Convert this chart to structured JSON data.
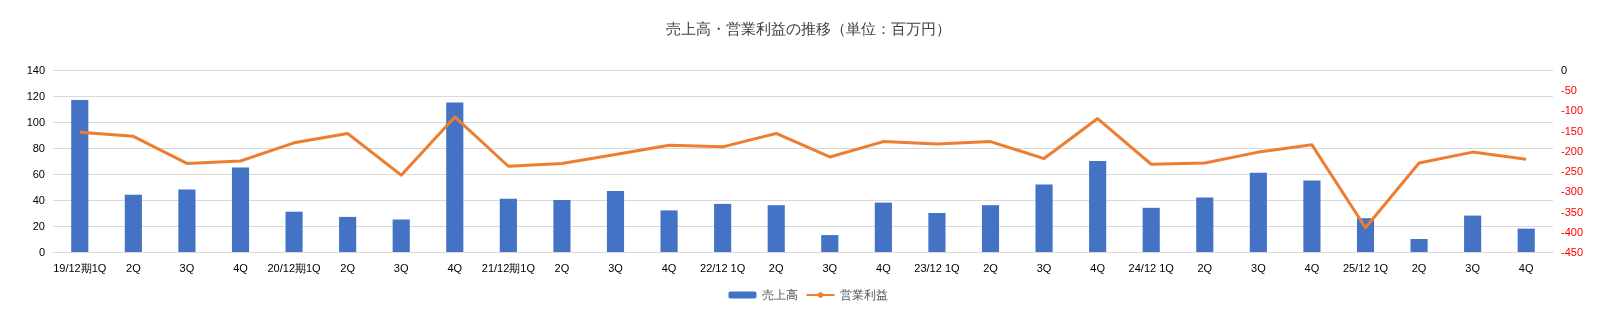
{
  "chart_data": {
    "type": "bar",
    "title": "売上高・営業利益の推移（単位：百万円）",
    "categories": [
      "19/12期1Q",
      "2Q",
      "3Q",
      "4Q",
      "20/12期1Q",
      "2Q",
      "3Q",
      "4Q",
      "21/12期1Q",
      "2Q",
      "3Q",
      "4Q",
      "22/12 1Q",
      "2Q",
      "3Q",
      "4Q",
      "23/12 1Q",
      "2Q",
      "3Q",
      "4Q",
      "24/12 1Q",
      "2Q",
      "3Q",
      "4Q",
      "25/12 1Q",
      "2Q",
      "3Q",
      "4Q"
    ],
    "series": [
      {
        "name": "売上高",
        "color": "#4472c4",
        "values": [
          117,
          44,
          48,
          65,
          31,
          27,
          25,
          115,
          41,
          40,
          47,
          32,
          37,
          36,
          13,
          38,
          30,
          36,
          52,
          70,
          34,
          42,
          61,
          55,
          26,
          10,
          28,
          18
        ]
      },
      {
        "name": "営業利益",
        "type": "line",
        "axis": "y2",
        "color": "#ed7d31",
        "values": [
          -154,
          -164,
          -231,
          -225,
          -180,
          -157,
          -260,
          -116,
          -238,
          -231,
          -209,
          -186,
          -190,
          -157,
          -215,
          -177,
          -183,
          -177,
          -219,
          -120,
          -233,
          -230,
          -203,
          -185,
          -390,
          -230,
          -203,
          -221
        ]
      }
    ],
    "ylim": [
      0,
      140
    ],
    "yticks": [
      0,
      20,
      40,
      60,
      80,
      100,
      120,
      140
    ],
    "y2lim": [
      -450,
      0
    ],
    "y2ticks": [
      -450,
      -400,
      -350,
      -300,
      -250,
      -200,
      -150,
      -100,
      -50,
      0
    ],
    "grid": "y",
    "legend": "bottom",
    "marker": "none",
    "line_style": "solid"
  }
}
